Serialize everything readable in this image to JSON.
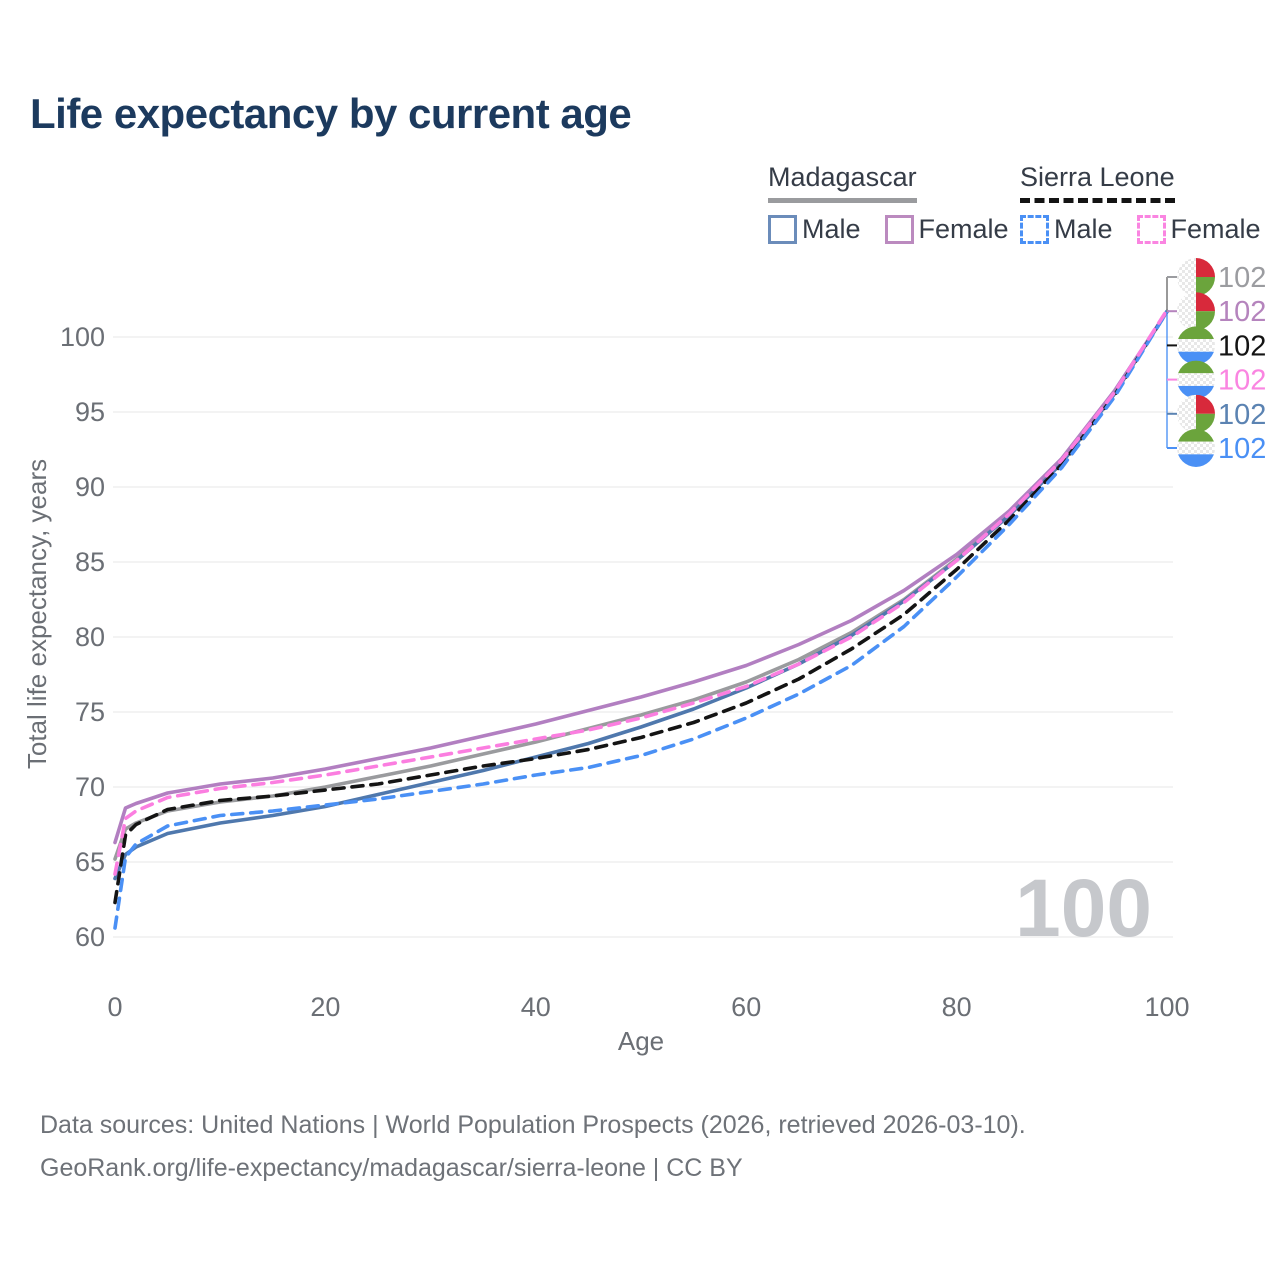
{
  "title": "Life expectancy by current age",
  "legend": {
    "madagascar": {
      "label": "Madagascar",
      "male_label": "Male",
      "female_label": "Female",
      "line_style": "solid",
      "underline_color": "#9a9b9e",
      "male_color": "#6b8cba",
      "female_color": "#bb8abf"
    },
    "sierra_leone": {
      "label": "Sierra Leone",
      "male_label": "Male",
      "female_label": "Female",
      "line_style": "dashed",
      "underline_color": "#141414",
      "male_color": "#4a90f5",
      "female_color": "#fa85e1"
    }
  },
  "watermark_age": "100",
  "footer": {
    "line1": "Data sources: United Nations | World Population Prospects (2026, retrieved 2026-03-10).",
    "line2": "GeoRank.org/life-expectancy/madagascar/sierra-leone | CC BY"
  },
  "colors": {
    "title": "#1c3a5e",
    "axis_text": "#6b6f75",
    "gridline": "#ececec",
    "watermark": "#c6c8cc",
    "leader_top": "#777777",
    "leader_bottom": "#4a90f5",
    "flag_red": "#d8293b",
    "flag_green": "#6ba43c",
    "flag_blue": "#4a90f5"
  },
  "chart_data": {
    "type": "line",
    "title": "Life expectancy by current age",
    "xlabel": "Age",
    "ylabel": "Total life expectancy, years",
    "xlim": [
      0,
      100
    ],
    "ylim": [
      60,
      103
    ],
    "x_ticks": [
      0,
      20,
      40,
      60,
      80,
      100
    ],
    "y_ticks": [
      60,
      65,
      70,
      75,
      80,
      85,
      90,
      95,
      100
    ],
    "grid": "horizontal",
    "legend_position": "top-right",
    "x": [
      0,
      1,
      2,
      5,
      10,
      15,
      20,
      25,
      30,
      35,
      40,
      45,
      50,
      55,
      60,
      65,
      70,
      75,
      80,
      85,
      90,
      95,
      100
    ],
    "series": [
      {
        "name": "Madagascar Total",
        "country": "madagascar",
        "sex": "total",
        "style": "solid",
        "color": "#9a9b9e",
        "values": [
          65.2,
          67.2,
          67.6,
          68.4,
          69.0,
          69.4,
          70.0,
          70.7,
          71.4,
          72.2,
          73.0,
          73.9,
          74.8,
          75.8,
          77.0,
          78.5,
          80.3,
          82.5,
          85.2,
          88.2,
          91.7,
          96.3,
          101.7
        ],
        "end_label": "102",
        "end_label_color": "#9b9ca0",
        "flag": "madagascar",
        "row": 0
      },
      {
        "name": "Madagascar Male",
        "country": "madagascar",
        "sex": "male",
        "style": "solid",
        "color": "#4f78ad",
        "values": [
          63.9,
          65.5,
          66.0,
          66.9,
          67.6,
          68.1,
          68.7,
          69.5,
          70.3,
          71.1,
          72.0,
          72.9,
          74.0,
          75.2,
          76.6,
          78.2,
          80.1,
          82.4,
          85.1,
          88.1,
          91.6,
          96.2,
          101.7
        ],
        "end_label": "102",
        "end_label_color": "#5b83b2",
        "flag": "madagascar",
        "row": 4
      },
      {
        "name": "Madagascar Female",
        "country": "madagascar",
        "sex": "female",
        "style": "solid",
        "color": "#b27fc1",
        "values": [
          66.3,
          68.6,
          68.9,
          69.6,
          70.2,
          70.6,
          71.2,
          71.9,
          72.6,
          73.4,
          74.2,
          75.1,
          76.0,
          77.0,
          78.1,
          79.5,
          81.1,
          83.1,
          85.5,
          88.4,
          91.9,
          96.4,
          101.7
        ],
        "end_label": "102",
        "end_label_color": "#b584bd",
        "flag": "madagascar",
        "row": 1
      },
      {
        "name": "Sierra Leone Total",
        "country": "sierra-leone",
        "sex": "total",
        "style": "dashed",
        "color": "#141414",
        "values": [
          62.3,
          66.8,
          67.5,
          68.5,
          69.1,
          69.4,
          69.8,
          70.2,
          70.8,
          71.4,
          71.9,
          72.5,
          73.3,
          74.3,
          75.6,
          77.2,
          79.2,
          81.5,
          84.5,
          87.8,
          91.5,
          96.1,
          101.7
        ],
        "end_label": "102",
        "end_label_color": "#141414",
        "flag": "sierra-leone",
        "row": 2
      },
      {
        "name": "Sierra Leone Male",
        "country": "sierra-leone",
        "sex": "male",
        "style": "dashed",
        "color": "#4a90f5",
        "values": [
          60.6,
          65.3,
          66.2,
          67.4,
          68.1,
          68.4,
          68.8,
          69.2,
          69.7,
          70.2,
          70.8,
          71.3,
          72.1,
          73.2,
          74.6,
          76.2,
          78.1,
          80.7,
          84.0,
          87.5,
          91.3,
          96.0,
          101.7
        ],
        "end_label": "102",
        "end_label_color": "#4a90f5",
        "flag": "sierra-leone",
        "row": 5
      },
      {
        "name": "Sierra Leone Female",
        "country": "sierra-leone",
        "sex": "female",
        "style": "dashed",
        "color": "#fb7ee0",
        "values": [
          64.2,
          67.9,
          68.4,
          69.3,
          69.9,
          70.3,
          70.8,
          71.4,
          72.0,
          72.6,
          73.2,
          73.8,
          74.6,
          75.6,
          76.7,
          78.2,
          80.0,
          82.3,
          85.1,
          88.2,
          91.8,
          96.3,
          101.8
        ],
        "end_label": "102",
        "end_label_color": "#fa85e1",
        "flag": "sierra-leone",
        "row": 3
      }
    ]
  }
}
